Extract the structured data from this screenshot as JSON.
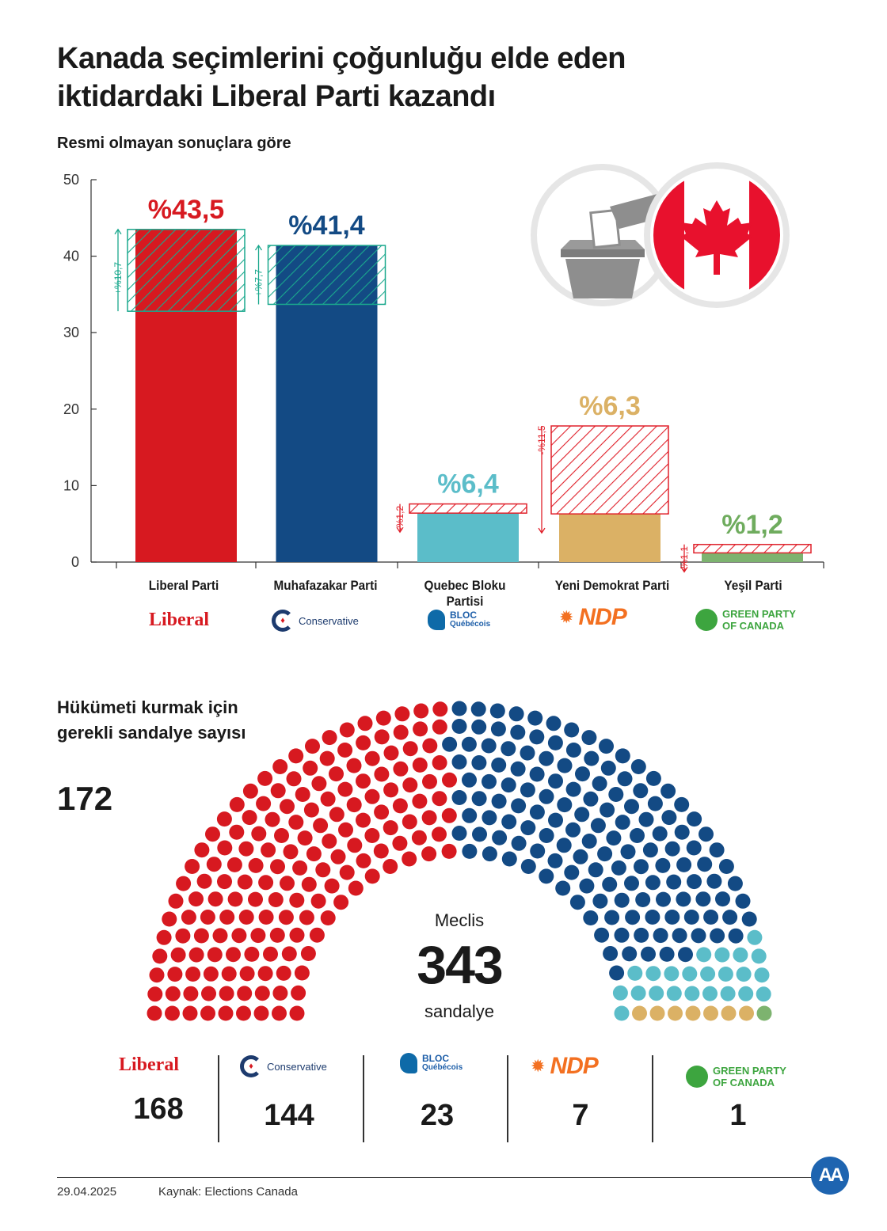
{
  "title": {
    "line1": "Kanada seçimlerini çoğunluğu elde eden",
    "line2": "iktidardaki Liberal Parti kazandı"
  },
  "subtitle": "Resmi olmayan sonuçlara göre",
  "chart_data": {
    "type": "bar",
    "categories": [
      "Liberal Parti",
      "Muhafazakar Parti",
      "Quebec Bloku Partisi",
      "Yeni Demokrat Parti",
      "Yeşil Parti"
    ],
    "values": [
      43.5,
      41.4,
      6.4,
      6.3,
      1.2
    ],
    "value_labels": [
      "%43,5",
      "%41,4",
      "%6,4",
      "%6,3",
      "%1,2"
    ],
    "changes": [
      10.7,
      7.7,
      -1.2,
      -11.5,
      -1.1
    ],
    "change_labels": [
      "+%10,7",
      "+%7,7",
      "-%1,2",
      "-%11,5",
      "-%1,1"
    ],
    "ylim": [
      0,
      50
    ],
    "yticks": [
      0,
      10,
      20,
      30,
      40,
      50
    ],
    "colors": [
      "#d71920",
      "#134a84",
      "#5bbdc9",
      "#dbb165",
      "#7db36f"
    ],
    "label_colors": [
      "#d71920",
      "#134a84",
      "#5bbdc9",
      "#dbb165",
      "#6fac5e"
    ],
    "increase_color": "#1aa88d",
    "decrease_color": "#e0202a",
    "grid": false
  },
  "logos": {
    "liberal": "Liberal",
    "conservative": "Conservative",
    "bloc_line1": "BLOC",
    "bloc_line2": "Québécois",
    "ndp": "NDP",
    "green_line1": "GREEN PARTY",
    "green_line2": "OF CANADA"
  },
  "icons": [
    "ballot-box-icon",
    "canada-flag-icon",
    "maple-leaf-icon"
  ],
  "seats": {
    "required_title": "Hükümeti kurmak için gerekli sandalye sayısı",
    "required": "172",
    "parliament_label": "Meclis",
    "total": "343",
    "total_unit": "sandalye",
    "counts": [
      168,
      144,
      23,
      7,
      1
    ],
    "count_labels": [
      "168",
      "144",
      "23",
      "7",
      "1"
    ]
  },
  "footer": {
    "date": "29.04.2025",
    "source": "Kaynak: Elections Canada",
    "agency_logo": "AA"
  }
}
